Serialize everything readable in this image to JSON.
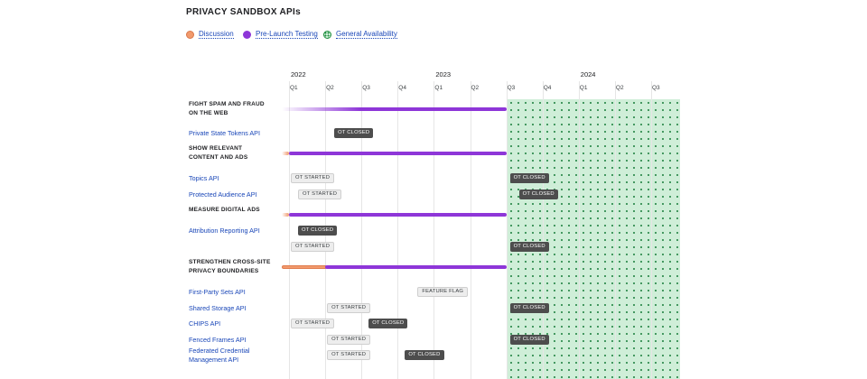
{
  "title": "PRIVACY SANDBOX APIs",
  "legend": [
    {
      "label": "Discussion",
      "kind": "disc"
    },
    {
      "label": "Pre-Launch Testing",
      "kind": "plt"
    },
    {
      "label": "General Availability",
      "kind": "ga"
    }
  ],
  "colors": {
    "discussion": "#f19a6d",
    "pre_launch": "#8e36d8",
    "general_availability": "#cfeed8",
    "link": "#1a47b8"
  },
  "chart_data": {
    "type": "table",
    "years": [
      {
        "label": "2022",
        "start": 0
      },
      {
        "label": "2023",
        "start": 4
      },
      {
        "label": "2024",
        "start": 8
      }
    ],
    "quarters": [
      "Q1",
      "Q2",
      "Q3",
      "Q4",
      "Q1",
      "Q2",
      "Q3",
      "Q4",
      "Q1",
      "Q2",
      "Q3"
    ],
    "general_availability_start": 6,
    "groups": [
      {
        "title_lines": [
          "FIGHT SPAM AND FRAUD",
          "ON THE WEB"
        ],
        "bars": [
          {
            "kind": "plt",
            "start": -0.2,
            "end": 6,
            "fade": true
          }
        ],
        "apis": [
          {
            "name_lines": [
              "Private State Tokens API"
            ],
            "tags": [
              {
                "label": "OT CLOSED",
                "type": "closed",
                "at": 1.2
              }
            ]
          }
        ]
      },
      {
        "title_lines": [
          "SHOW RELEVANT",
          "CONTENT AND ADS"
        ],
        "bars": [
          {
            "kind": "disc",
            "start": -0.2,
            "end": 0,
            "fade": true
          },
          {
            "kind": "plt",
            "start": 0,
            "end": 6
          }
        ],
        "apis": [
          {
            "name_lines": [
              "Topics API"
            ],
            "tags": [
              {
                "label": "OT STARTED",
                "type": "started",
                "at": 0
              },
              {
                "label": "OT CLOSED",
                "type": "closed",
                "at": 6.05
              }
            ]
          },
          {
            "name_lines": [
              "Protected Audience API"
            ],
            "tags": [
              {
                "label": "OT STARTED",
                "type": "started",
                "at": 0.2
              },
              {
                "label": "OT CLOSED",
                "type": "closed",
                "at": 6.3
              }
            ]
          }
        ]
      },
      {
        "title_lines": [
          "MEASURE DIGITAL ADS"
        ],
        "bars": [
          {
            "kind": "disc",
            "start": -0.2,
            "end": 0,
            "fade": true
          },
          {
            "kind": "plt",
            "start": 0,
            "end": 6
          }
        ],
        "apis": [
          {
            "name_lines": [
              "Attribution Reporting API"
            ],
            "tags": [
              {
                "label": "OT CLOSED",
                "type": "closed",
                "at": 0.2
              }
            ]
          },
          {
            "name_lines": [
              ""
            ],
            "tags": [
              {
                "label": "OT STARTED",
                "type": "started",
                "at": 0
              },
              {
                "label": "OT CLOSED",
                "type": "closed",
                "at": 6.05
              }
            ]
          }
        ]
      },
      {
        "title_lines": [
          "STRENGTHEN CROSS-SITE",
          "PRIVACY BOUNDARIES"
        ],
        "bars": [
          {
            "kind": "disc",
            "start": -0.2,
            "end": 1
          },
          {
            "kind": "plt",
            "start": 1,
            "end": 6
          }
        ],
        "apis": [
          {
            "name_lines": [
              "First-Party Sets API"
            ],
            "tags": [
              {
                "label": "FEATURE FLAG",
                "type": "flag",
                "at": 3.5
              }
            ]
          },
          {
            "name_lines": [
              "Shared Storage API"
            ],
            "tags": [
              {
                "label": "OT STARTED",
                "type": "started",
                "at": 1
              },
              {
                "label": "OT CLOSED",
                "type": "closed",
                "at": 6.05
              }
            ]
          },
          {
            "name_lines": [
              "CHIPS API"
            ],
            "tags": [
              {
                "label": "OT STARTED",
                "type": "started",
                "at": 0
              },
              {
                "label": "OT CLOSED",
                "type": "closed",
                "at": 2.15
              }
            ]
          },
          {
            "name_lines": [
              "Fenced Frames API"
            ],
            "tags": [
              {
                "label": "OT STARTED",
                "type": "started",
                "at": 1
              },
              {
                "label": "OT CLOSED",
                "type": "closed",
                "at": 6.05
              }
            ]
          },
          {
            "name_lines": [
              "Federated Credential",
              "Management API"
            ],
            "tags": [
              {
                "label": "OT STARTED",
                "type": "started",
                "at": 1
              },
              {
                "label": "OT CLOSED",
                "type": "closed",
                "at": 3.15
              }
            ]
          }
        ]
      }
    ]
  }
}
